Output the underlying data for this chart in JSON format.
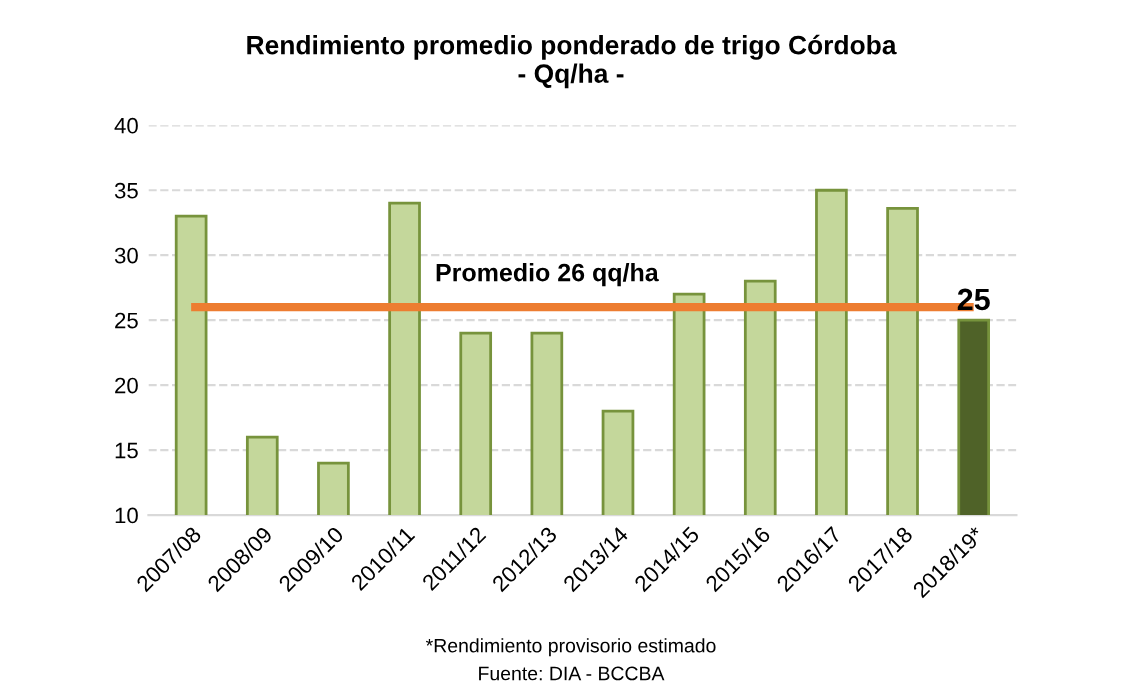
{
  "chart_data": {
    "type": "bar",
    "title": "Rendimiento promedio ponderado de trigo Córdoba\n- Qq/ha -",
    "categories": [
      "2007/08",
      "2008/09",
      "2009/10",
      "2010/11",
      "2011/12",
      "2012/13",
      "2013/14",
      "2014/15",
      "2015/16",
      "2016/17",
      "2017/18",
      "2018/19*"
    ],
    "values": [
      33,
      16,
      14,
      34,
      24,
      24,
      18,
      27,
      28,
      35,
      33.6,
      25
    ],
    "colors": [
      "#c4d79b",
      "#c4d79b",
      "#c4d79b",
      "#c4d79b",
      "#c4d79b",
      "#c4d79b",
      "#c4d79b",
      "#c4d79b",
      "#c4d79b",
      "#c4d79b",
      "#c4d79b",
      "#4f6228"
    ],
    "value_labels": [
      null,
      null,
      null,
      null,
      null,
      null,
      null,
      null,
      null,
      null,
      null,
      "25"
    ],
    "ylim": [
      10,
      40
    ],
    "yticks": [
      10,
      15,
      20,
      25,
      30,
      35,
      40
    ],
    "grid": "y",
    "ref_lines": [
      {
        "axis": "y",
        "value": 26,
        "label": "Promedio 26 qq/ha",
        "color": "#ed7d31"
      }
    ],
    "annotations": [
      "*Rendimiento provisorio estimado",
      "Fuente: DIA - BCCBA"
    ]
  }
}
